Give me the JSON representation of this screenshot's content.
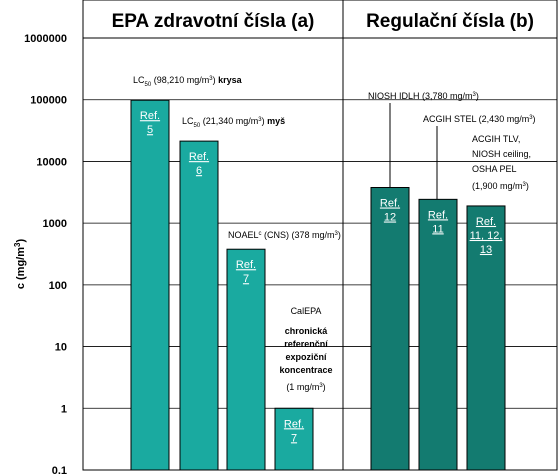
{
  "chart_data": {
    "type": "bar",
    "ylabel": "c (mg/m",
    "ylabel_sup": "3",
    "ylabel_close": ")",
    "yscale": "log",
    "ylim": [
      0.1,
      1000000
    ],
    "yticks": [
      "0.1",
      "1",
      "10",
      "100",
      "1000",
      "10000",
      "100000",
      "1000000"
    ],
    "grid": true,
    "panels": [
      {
        "title": "EPA zdravotní čísla (a)"
      },
      {
        "title": "Regulační čísla (b)"
      }
    ],
    "bars": [
      {
        "panel": 0,
        "value": 98210,
        "color": "#1aaaa0",
        "ref_lines": [
          "Ref.",
          "5"
        ]
      },
      {
        "panel": 0,
        "value": 21340,
        "color": "#1aaaa0",
        "ref_lines": [
          "Ref.",
          "6"
        ]
      },
      {
        "panel": 0,
        "value": 378,
        "color": "#1aaaa0",
        "ref_lines": [
          "Ref.",
          "7"
        ]
      },
      {
        "panel": 0,
        "value": 1,
        "color": "#1aaaa0",
        "ref_lines": [
          "Ref.",
          "7"
        ]
      },
      {
        "panel": 1,
        "value": 3780,
        "color": "#137b70",
        "ref_lines": [
          "Ref.",
          "12"
        ]
      },
      {
        "panel": 1,
        "value": 2430,
        "color": "#137b70",
        "ref_lines": [
          "Ref.",
          "11"
        ]
      },
      {
        "panel": 1,
        "value": 1900,
        "color": "#137b70",
        "ref_lines": [
          "Ref.",
          "11, 12,",
          "13"
        ]
      }
    ],
    "annotations": [
      {
        "prefix": "LC",
        "sub": "50",
        "text": " (98,210 mg/m",
        "sup": "3",
        "close": ")",
        "bold_suffix": "krysa"
      },
      {
        "prefix": "LC",
        "sub": "50",
        "text": " (21,340 mg/m",
        "sup": "3",
        "close": ")",
        "bold_suffix": "myš"
      },
      {
        "prefix": "NOAEL",
        "sup1": "c",
        "text": " (CNS) (378 mg/m",
        "sup": "3",
        "close": ")"
      },
      {
        "lines": [
          "CalEPA"
        ],
        "bold_lines": [
          "chronická",
          "referenční",
          "expoziční",
          "koncentrace"
        ],
        "text": "(1 mg/m",
        "sup": "3",
        "close": ")"
      },
      {
        "text": "NIOSH IDLH (3,780 mg/m",
        "sup": "3",
        "close": ")"
      },
      {
        "text": "ACGIH STEL (2,430 mg/m",
        "sup": "3",
        "close": ")"
      },
      {
        "lines": [
          "ACGIH TLV,",
          "NIOSH ceiling,",
          "OSHA PEL"
        ],
        "text": "(1,900 mg/m",
        "sup": "3",
        "close": ")"
      }
    ]
  }
}
